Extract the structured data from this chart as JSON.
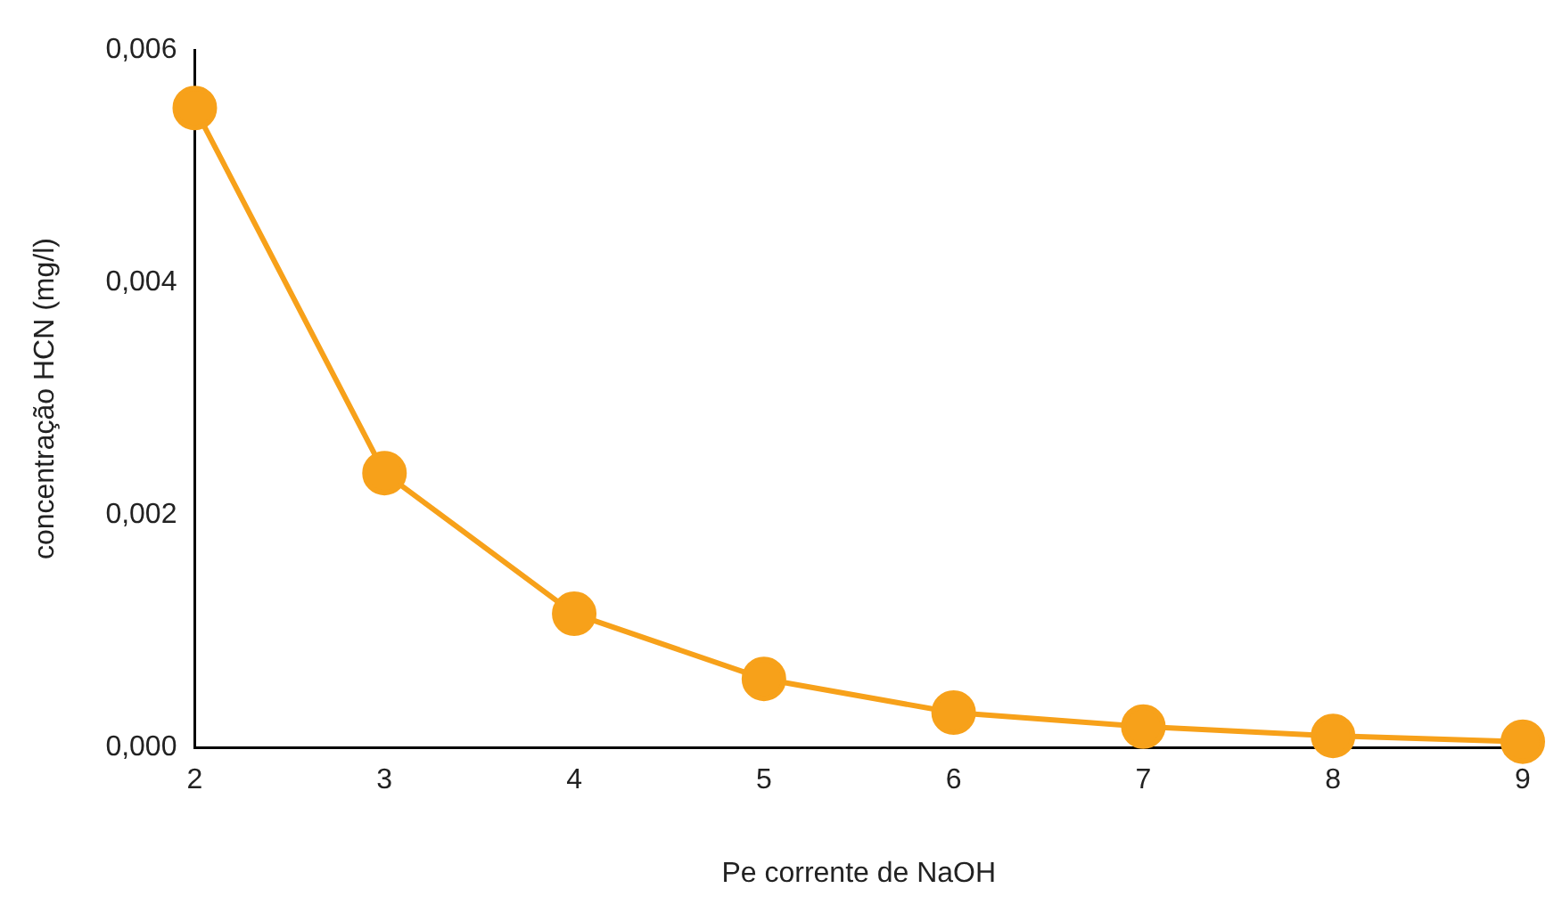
{
  "chart_data": {
    "type": "line",
    "xlabel": "Pe corrente de NaOH",
    "ylabel": "concentração HCN (mg/l)",
    "x": [
      2,
      3,
      4,
      5,
      6,
      7,
      8,
      9
    ],
    "series": [
      {
        "color": "#f7a11a",
        "values": [
          0.0055,
          0.00236,
          0.00115,
          0.00059,
          0.0003,
          0.00018,
          0.0001,
          5e-05
        ]
      }
    ],
    "xlim": [
      2,
      9
    ],
    "xticks": [
      2,
      3,
      4,
      5,
      6,
      7,
      8,
      9
    ],
    "ylim": [
      0,
      0.006
    ],
    "yticks": [
      {
        "value": 0,
        "label": "0,000"
      },
      {
        "value": 0.002,
        "label": "0,002"
      },
      {
        "value": 0.004,
        "label": "0,004"
      },
      {
        "value": 0.006,
        "label": "0,006"
      }
    ],
    "grid": false,
    "legend": false,
    "marker": "circle",
    "line_style": "solid"
  }
}
